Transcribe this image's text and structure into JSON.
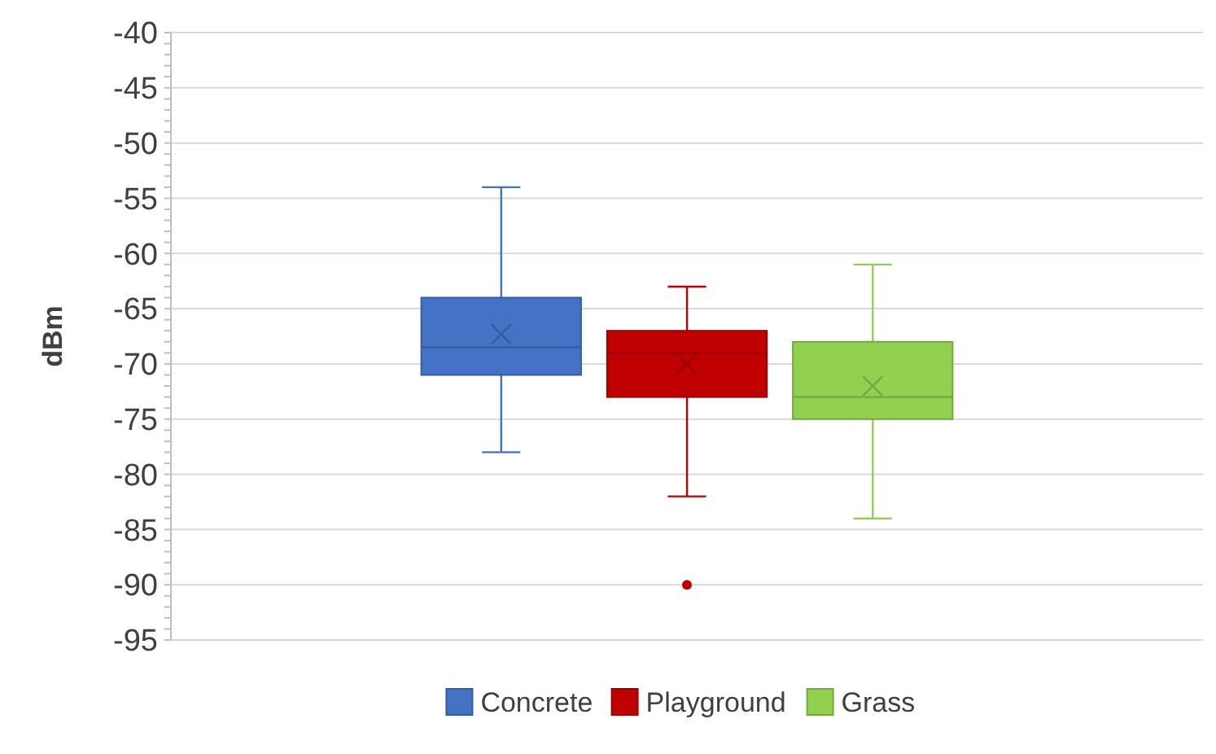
{
  "chart_data": {
    "type": "box",
    "ylabel": "dBm",
    "categories": [
      null
    ],
    "ylim": [
      -95,
      -40
    ],
    "yticks": [
      -95,
      -90,
      -85,
      -80,
      -75,
      -70,
      -65,
      -60,
      -55,
      -50,
      -45,
      -40
    ],
    "grid": "y",
    "legend": "bottom",
    "marker": "cross",
    "series": [
      {
        "name": "Concrete",
        "color": "#4472c4",
        "boxes": [
          {
            "low": -78,
            "q1": -71,
            "median": -68.5,
            "q3": -64,
            "high": -54,
            "mean": -67.3
          }
        ]
      },
      {
        "name": "Playground",
        "color": "#c00000",
        "boxes": [
          {
            "low": -82,
            "q1": -73,
            "median": -69,
            "q3": -67,
            "high": -63,
            "mean": -70,
            "outliers": [
              -90
            ]
          }
        ]
      },
      {
        "name": "Grass",
        "color": "#92d050",
        "boxes": [
          {
            "low": -84,
            "q1": -75,
            "median": -73,
            "q3": -68,
            "high": -61,
            "mean": -72
          }
        ]
      }
    ]
  }
}
